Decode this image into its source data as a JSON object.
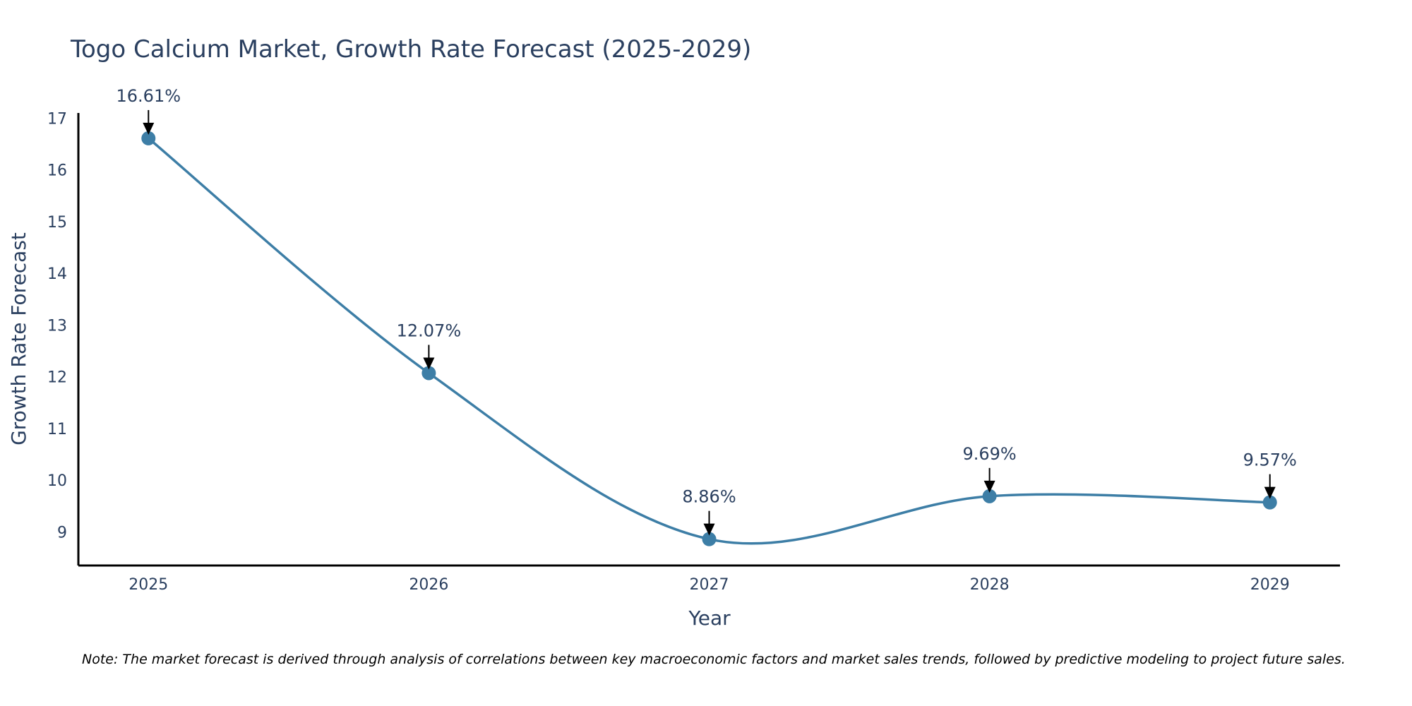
{
  "chart_data": {
    "type": "line",
    "title": "Togo Calcium Market, Growth Rate Forecast (2025-2029)",
    "xlabel": "Year",
    "ylabel": "Growth Rate Forecast",
    "categories": [
      "2025",
      "2026",
      "2027",
      "2028",
      "2029"
    ],
    "x": [
      2025,
      2026,
      2027,
      2028,
      2029
    ],
    "values": [
      16.61,
      12.07,
      8.86,
      9.69,
      9.57
    ],
    "data_labels": [
      "16.61%",
      "12.07%",
      "8.86%",
      "9.69%",
      "9.57%"
    ],
    "yticks": [
      9,
      10,
      11,
      12,
      13,
      14,
      15,
      16,
      17
    ],
    "ylim": [
      8.35,
      17.1
    ],
    "xlim": [
      2024.75,
      2029.25
    ],
    "grid": false,
    "line_shape": "spline",
    "annotation_arrows": true
  },
  "note": "Note: The market forecast is derived through analysis of correlations between key macroeconomic factors and market sales trends, followed by predictive modeling to project future sales.",
  "colors": {
    "line": "#3d7ea6",
    "marker": "#3d7ea6",
    "axis": "#000000",
    "text": "#2a3f5f",
    "arrow": "#000000"
  }
}
